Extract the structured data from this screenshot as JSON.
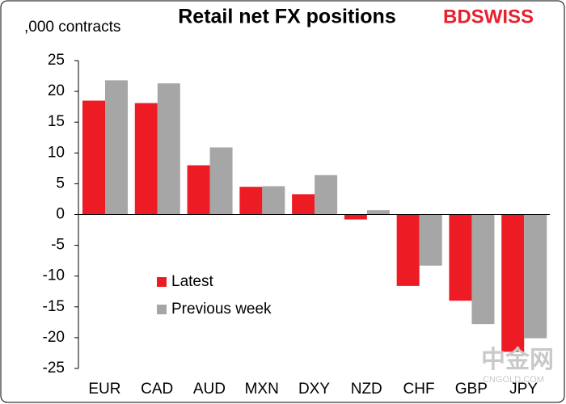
{
  "chart_data": {
    "type": "bar",
    "title": "Retail net FX positions",
    "y_label": ",000 contracts",
    "logo": "BDSWISS",
    "watermark": [
      "中金网",
      "CNGOLD.COM"
    ],
    "categories": [
      "EUR",
      "CAD",
      "AUD",
      "MXN",
      "DXY",
      "NZD",
      "CHF",
      "GBP",
      "JPY"
    ],
    "series": [
      {
        "name": "Latest",
        "color": "#ed1c24",
        "values": [
          18.5,
          18.1,
          8.0,
          4.5,
          3.3,
          -0.8,
          -11.6,
          -14.0,
          -22.3
        ]
      },
      {
        "name": "Previous week",
        "color": "#a6a6a6",
        "values": [
          21.8,
          21.3,
          10.9,
          4.6,
          6.4,
          0.7,
          -8.3,
          -17.8,
          -20.1
        ]
      }
    ],
    "ylim": [
      -25,
      25
    ],
    "yticks": [
      -25,
      -20,
      -15,
      -10,
      -5,
      0,
      5,
      10,
      15,
      20,
      25
    ],
    "grid": false,
    "legend": "lower-left"
  }
}
